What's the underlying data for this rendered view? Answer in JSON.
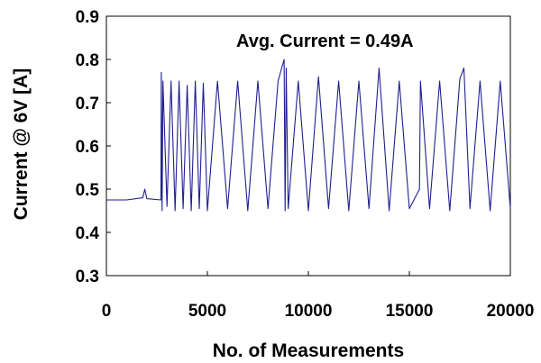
{
  "chart_data": {
    "type": "line",
    "title": "",
    "xlabel": "No. of Measurements",
    "ylabel": "Current @ 6V [A]",
    "xlim": [
      0,
      20000
    ],
    "ylim": [
      0.3,
      0.9
    ],
    "xticks": [
      0,
      5000,
      10000,
      15000,
      20000
    ],
    "xtick_labels": [
      "0",
      "5000",
      "10000",
      "15000",
      "20000"
    ],
    "yticks": [
      0.3,
      0.4,
      0.5,
      0.6,
      0.7,
      0.8,
      0.9
    ],
    "ytick_labels": [
      "0.3",
      "0.4",
      "0.5",
      "0.6",
      "0.7",
      "0.8",
      "0.9"
    ],
    "grid": false,
    "legend": "none",
    "annotation": "Avg. Current = 0.49A",
    "series_color": "#1f1f8f",
    "series": [
      {
        "x": [
          0,
          1000,
          1800,
          1900,
          2000,
          2700,
          2720,
          2760,
          2800,
          3000,
          3200,
          3400,
          3600,
          3800,
          4000,
          4200,
          4400,
          4600,
          4800,
          5000,
          5500,
          6000,
          6500,
          7000,
          7500,
          8000,
          8500,
          8800,
          8850,
          8900,
          9000,
          9500,
          10000,
          10500,
          11000,
          11500,
          12000,
          12500,
          13000,
          13500,
          14000,
          14500,
          15000,
          15500,
          15550,
          16000,
          16500,
          17000,
          17500,
          17700,
          18000,
          18500,
          19000,
          19500,
          20000
        ],
        "y": [
          0.475,
          0.475,
          0.48,
          0.5,
          0.478,
          0.475,
          0.77,
          0.45,
          0.75,
          0.46,
          0.75,
          0.45,
          0.75,
          0.455,
          0.74,
          0.45,
          0.75,
          0.455,
          0.745,
          0.45,
          0.75,
          0.455,
          0.75,
          0.45,
          0.75,
          0.455,
          0.75,
          0.8,
          0.45,
          0.78,
          0.455,
          0.75,
          0.45,
          0.76,
          0.455,
          0.75,
          0.45,
          0.75,
          0.455,
          0.78,
          0.45,
          0.75,
          0.455,
          0.5,
          0.75,
          0.455,
          0.75,
          0.45,
          0.755,
          0.78,
          0.455,
          0.75,
          0.45,
          0.75,
          0.455
        ]
      }
    ]
  }
}
